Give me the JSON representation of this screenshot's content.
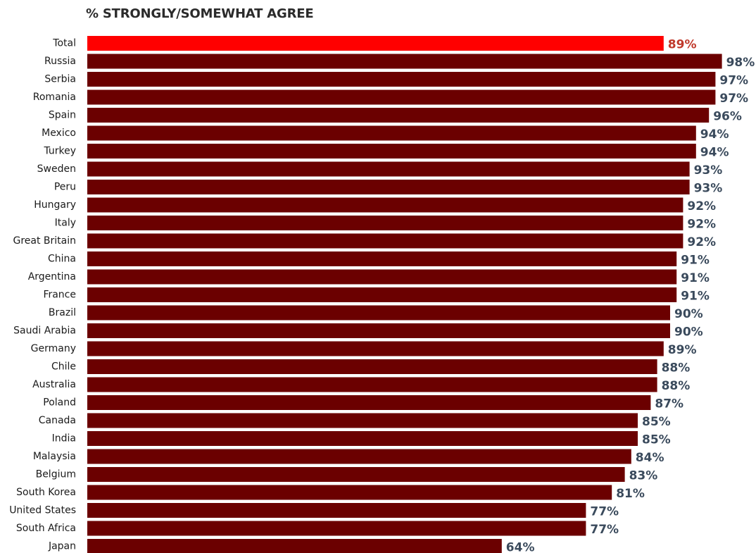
{
  "chart_data": {
    "type": "bar",
    "orientation": "horizontal",
    "title": "% STRONGLY/SOMEWHAT AGREE",
    "xlabel": "",
    "ylabel": "",
    "xlim": [
      0,
      100
    ],
    "grid": false,
    "legend": "none",
    "categories": [
      "Total",
      "Russia",
      "Serbia",
      "Romania",
      "Spain",
      "Mexico",
      "Turkey",
      "Sweden",
      "Peru",
      "Hungary",
      "Italy",
      "Great Britain",
      "China",
      "Argentina",
      "France",
      "Brazil",
      "Saudi Arabia",
      "Germany",
      "Chile",
      "Australia",
      "Poland",
      "Canada",
      "India",
      "Malaysia",
      "Belgium",
      "South Korea",
      "United States",
      "South Africa",
      "Japan"
    ],
    "values": [
      89,
      98,
      97,
      97,
      96,
      94,
      94,
      93,
      93,
      92,
      92,
      92,
      91,
      91,
      91,
      90,
      90,
      89,
      88,
      88,
      87,
      85,
      85,
      84,
      83,
      81,
      77,
      77,
      64
    ],
    "value_labels": [
      "89%",
      "98%",
      "97%",
      "97%",
      "96%",
      "94%",
      "94%",
      "93%",
      "93%",
      "92%",
      "92%",
      "92%",
      "91%",
      "91%",
      "91%",
      "90%",
      "90%",
      "89%",
      "88%",
      "88%",
      "87%",
      "85%",
      "85%",
      "84%",
      "83%",
      "81%",
      "77%",
      "77%",
      "64%"
    ],
    "highlight_category": "Total",
    "colors": {
      "highlight_bar": "#ff0000",
      "bar": "#6b0000",
      "highlight_label": "#c0392b",
      "label": "#3a4a5c",
      "category_label": "#1a1a1a"
    }
  }
}
